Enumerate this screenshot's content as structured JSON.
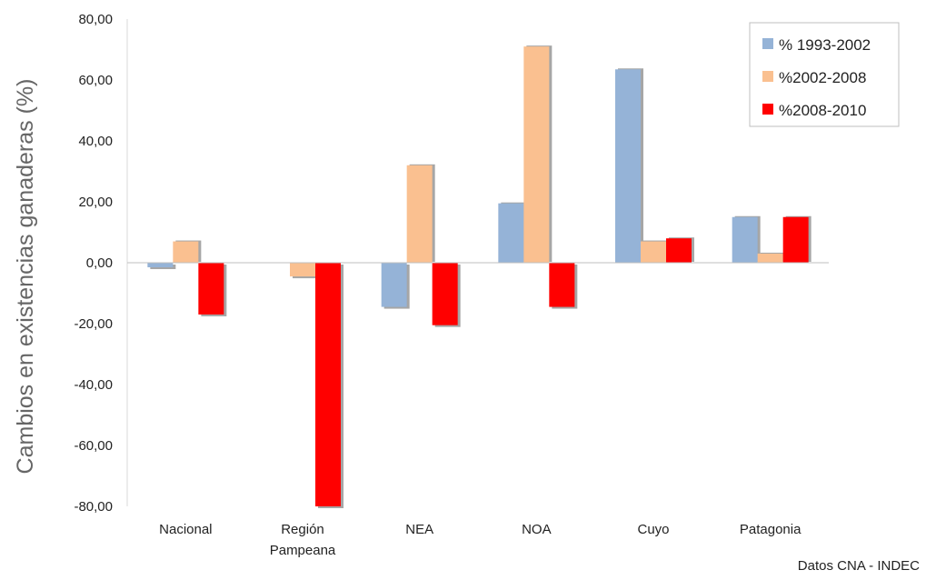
{
  "chart_data": {
    "type": "bar",
    "title": "",
    "xlabel": "",
    "ylabel": "Cambios en existencias ganaderas (%)",
    "ylim": [
      -80,
      80
    ],
    "yticks": [
      "80,00",
      "60,00",
      "40,00",
      "20,00",
      "0,00",
      "-20,00",
      "-40,00",
      "-60,00",
      "-80,00"
    ],
    "categories": [
      [
        "Nacional"
      ],
      [
        "Región",
        "Pampeana"
      ],
      [
        "NEA"
      ],
      [
        "NOA"
      ],
      [
        "Cuyo"
      ],
      [
        "Patagonia"
      ]
    ],
    "series": [
      {
        "name": "% 1993-2002",
        "color": "#95b3d7",
        "values": [
          -1.5,
          0,
          -14.5,
          19.5,
          63.5,
          15
        ]
      },
      {
        "name": "%2002-2008",
        "color": "#fac090",
        "values": [
          7,
          -4.5,
          32,
          71,
          7,
          3
        ]
      },
      {
        "name": "%2008-2010",
        "color": "#ff0000",
        "values": [
          -17,
          -80,
          -20.5,
          -14.5,
          8,
          15
        ]
      }
    ],
    "legend_position": "top-right",
    "grid": false,
    "source_note": "Datos CNA - INDEC"
  }
}
